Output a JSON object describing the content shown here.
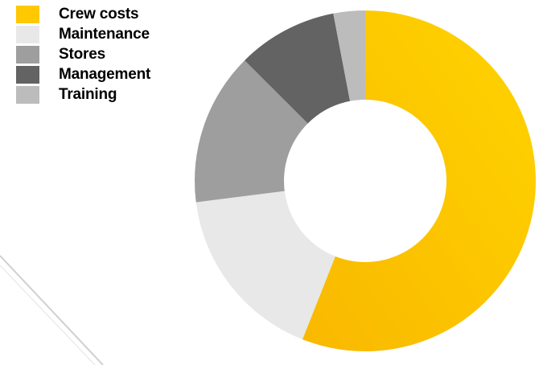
{
  "chart_data": {
    "type": "pie",
    "style": "donut",
    "title": "",
    "legend_position": "top-left",
    "categories": [
      "Crew costs",
      "Maintenance",
      "Stores",
      "Management",
      "Training"
    ],
    "values": [
      56,
      17,
      14.5,
      9.5,
      3
    ],
    "colors": [
      "#FFC800",
      "#E8E8E8",
      "#9E9E9E",
      "#636363",
      "#BCBCBC"
    ]
  }
}
